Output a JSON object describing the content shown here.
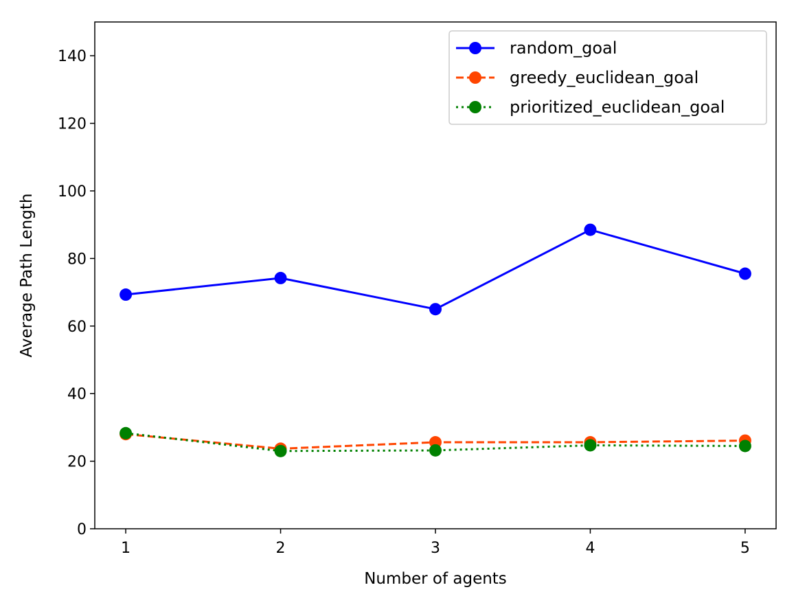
{
  "chart_data": {
    "type": "line",
    "title": "",
    "xlabel": "Number of agents",
    "ylabel": "Average Path Length",
    "x": [
      1,
      2,
      3,
      4,
      5
    ],
    "x_ticks": [
      "1",
      "2",
      "3",
      "4",
      "5"
    ],
    "y_ticks": [
      "0",
      "20",
      "40",
      "60",
      "80",
      "100",
      "120",
      "140"
    ],
    "xlim": [
      0.8,
      5.2
    ],
    "ylim": [
      0,
      150
    ],
    "grid": false,
    "legend_position": "top-right",
    "series": [
      {
        "name": "random_goal",
        "values": [
          69.3,
          74.2,
          65.0,
          88.5,
          75.5
        ],
        "color": "#0000ff",
        "line_style": "solid",
        "marker": "circle"
      },
      {
        "name": "greedy_euclidean_goal",
        "values": [
          28.0,
          23.7,
          25.6,
          25.6,
          26.1
        ],
        "color": "#ff4500",
        "line_style": "dashed",
        "marker": "circle"
      },
      {
        "name": "prioritized_euclidean_goal",
        "values": [
          28.3,
          23.0,
          23.2,
          24.7,
          24.5
        ],
        "color": "#008000",
        "line_style": "dotted",
        "marker": "circle"
      }
    ]
  }
}
